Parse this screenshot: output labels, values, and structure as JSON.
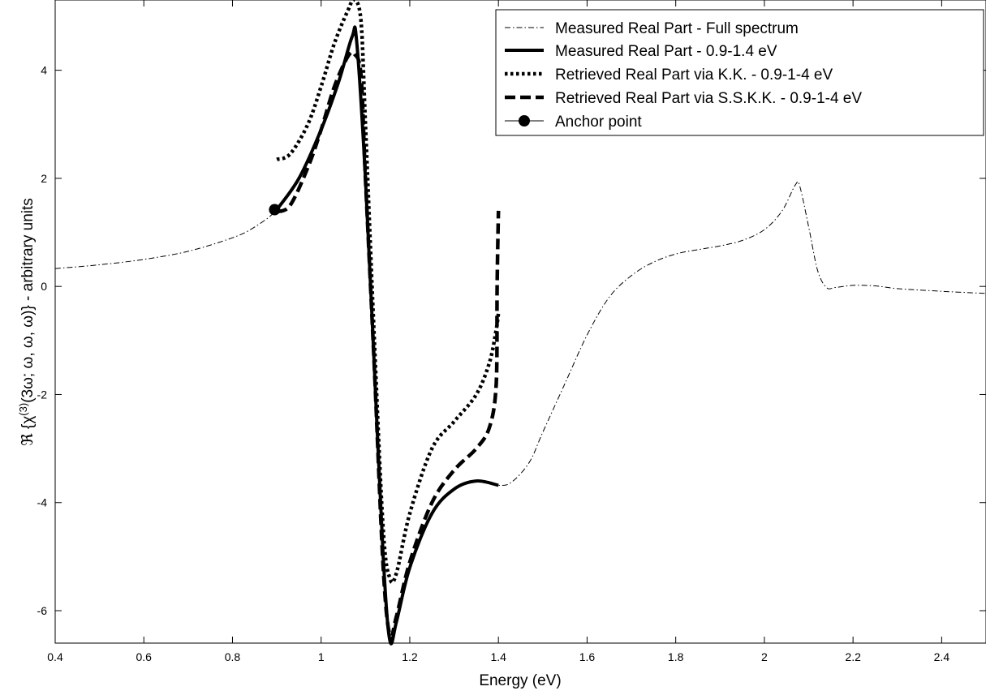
{
  "chart_data": {
    "type": "line",
    "xlabel": "Energy (eV)",
    "ylabel": "ℜ {χ(3)(3ω; ω, ω, ω)} - arbitrary units",
    "xlim": [
      0.4,
      2.5
    ],
    "ylim": [
      -6.6,
      5.3
    ],
    "x_ticks": [
      0.4,
      0.6,
      0.8,
      1,
      1.2,
      1.4,
      1.6,
      1.8,
      2,
      2.2,
      2.4
    ],
    "x_tick_labels": [
      "0.4",
      "0.6",
      "0.8",
      "1",
      "1.2",
      "1.4",
      "1.6",
      "1.8",
      "2",
      "2.2",
      "2.4"
    ],
    "y_ticks": [
      -6,
      -4,
      -2,
      0,
      2,
      4
    ],
    "y_tick_labels": [
      "-6",
      "-4",
      "-2",
      "0",
      "2",
      "4"
    ],
    "grid": false,
    "legend_position": "top-right",
    "series": [
      {
        "name": "Measured Real Part - Full spectrum",
        "style": "dashdot-thin",
        "color": "#000000",
        "points": [
          [
            0.4,
            0.33
          ],
          [
            0.5,
            0.4
          ],
          [
            0.6,
            0.5
          ],
          [
            0.7,
            0.65
          ],
          [
            0.8,
            0.9
          ],
          [
            0.85,
            1.1
          ],
          [
            0.9,
            1.42
          ],
          [
            0.95,
            2.0
          ],
          [
            1.0,
            2.9
          ],
          [
            1.04,
            3.8
          ],
          [
            1.07,
            4.6
          ],
          [
            1.085,
            4.3
          ],
          [
            1.1,
            2.0
          ],
          [
            1.12,
            -1.5
          ],
          [
            1.14,
            -5.0
          ],
          [
            1.155,
            -6.55
          ],
          [
            1.17,
            -6.2
          ],
          [
            1.2,
            -5.2
          ],
          [
            1.25,
            -4.2
          ],
          [
            1.3,
            -3.75
          ],
          [
            1.35,
            -3.6
          ],
          [
            1.4,
            -3.68
          ],
          [
            1.43,
            -3.62
          ],
          [
            1.47,
            -3.25
          ],
          [
            1.5,
            -2.7
          ],
          [
            1.55,
            -1.8
          ],
          [
            1.6,
            -0.9
          ],
          [
            1.65,
            -0.2
          ],
          [
            1.7,
            0.2
          ],
          [
            1.75,
            0.45
          ],
          [
            1.8,
            0.6
          ],
          [
            1.85,
            0.68
          ],
          [
            1.9,
            0.75
          ],
          [
            1.95,
            0.85
          ],
          [
            2.0,
            1.05
          ],
          [
            2.04,
            1.4
          ],
          [
            2.07,
            1.88
          ],
          [
            2.08,
            1.85
          ],
          [
            2.1,
            1.1
          ],
          [
            2.12,
            0.3
          ],
          [
            2.14,
            -0.02
          ],
          [
            2.16,
            -0.02
          ],
          [
            2.2,
            0.02
          ],
          [
            2.25,
            0.01
          ],
          [
            2.3,
            -0.04
          ],
          [
            2.4,
            -0.09
          ],
          [
            2.5,
            -0.13
          ]
        ]
      },
      {
        "name": "Measured Real Part - 0.9-1.4 eV",
        "style": "solid-thick",
        "color": "#000000",
        "points": [
          [
            0.9,
            1.42
          ],
          [
            0.95,
            2.0
          ],
          [
            1.0,
            2.9
          ],
          [
            1.04,
            3.8
          ],
          [
            1.07,
            4.62
          ],
          [
            1.08,
            4.55
          ],
          [
            1.1,
            2.0
          ],
          [
            1.12,
            -1.5
          ],
          [
            1.14,
            -5.0
          ],
          [
            1.155,
            -6.55
          ],
          [
            1.17,
            -6.2
          ],
          [
            1.2,
            -5.2
          ],
          [
            1.25,
            -4.2
          ],
          [
            1.3,
            -3.75
          ],
          [
            1.35,
            -3.6
          ],
          [
            1.4,
            -3.68
          ]
        ]
      },
      {
        "name": "Retrieved Real Part via K.K. - 0.9-1-4 eV",
        "style": "dotted-thick",
        "color": "#000000",
        "points": [
          [
            0.9,
            2.35
          ],
          [
            0.93,
            2.45
          ],
          [
            0.97,
            3.0
          ],
          [
            1.0,
            3.7
          ],
          [
            1.03,
            4.5
          ],
          [
            1.06,
            5.1
          ],
          [
            1.075,
            5.3
          ],
          [
            1.09,
            4.9
          ],
          [
            1.1,
            3.0
          ],
          [
            1.12,
            -1.0
          ],
          [
            1.14,
            -4.5
          ],
          [
            1.155,
            -5.4
          ],
          [
            1.17,
            -5.3
          ],
          [
            1.2,
            -4.2
          ],
          [
            1.25,
            -3.0
          ],
          [
            1.3,
            -2.5
          ],
          [
            1.35,
            -2.0
          ],
          [
            1.38,
            -1.4
          ],
          [
            1.395,
            -0.8
          ],
          [
            1.4,
            -0.5
          ]
        ]
      },
      {
        "name": "Retrieved Real Part via S.S.K.K. - 0.9-1-4 eV",
        "style": "dashed-thick",
        "color": "#000000",
        "points": [
          [
            0.9,
            1.38
          ],
          [
            0.93,
            1.5
          ],
          [
            0.97,
            2.2
          ],
          [
            1.0,
            2.9
          ],
          [
            1.03,
            3.7
          ],
          [
            1.06,
            4.25
          ],
          [
            1.075,
            4.3
          ],
          [
            1.09,
            3.9
          ],
          [
            1.1,
            2.0
          ],
          [
            1.12,
            -1.5
          ],
          [
            1.14,
            -5.2
          ],
          [
            1.155,
            -6.45
          ],
          [
            1.17,
            -6.1
          ],
          [
            1.2,
            -5.1
          ],
          [
            1.25,
            -4.0
          ],
          [
            1.3,
            -3.4
          ],
          [
            1.35,
            -3.0
          ],
          [
            1.38,
            -2.6
          ],
          [
            1.395,
            -1.8
          ],
          [
            1.397,
            0.0
          ],
          [
            1.4,
            1.4
          ]
        ]
      },
      {
        "name": "Anchor point",
        "style": "marker",
        "color": "#000000",
        "points": [
          [
            0.895,
            1.42
          ]
        ]
      }
    ]
  }
}
